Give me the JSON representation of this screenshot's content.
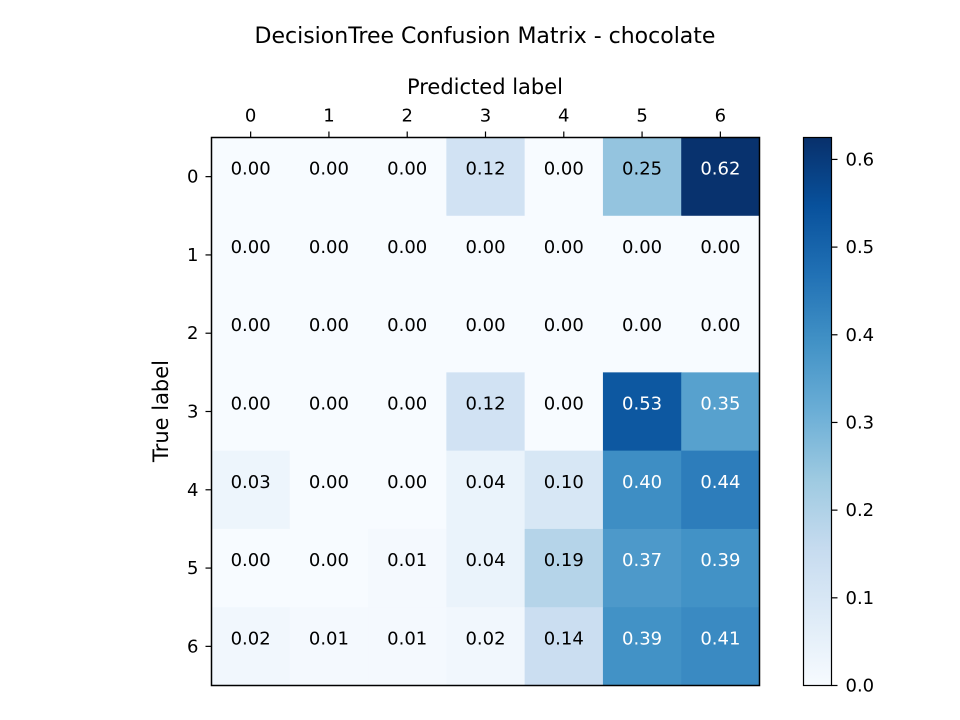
{
  "chart_data": {
    "type": "heatmap",
    "title": "DecisionTree Confusion Matrix - chocolate",
    "xlabel": "Predicted label",
    "ylabel": "True label",
    "x_categories": [
      "0",
      "1",
      "2",
      "3",
      "4",
      "5",
      "6"
    ],
    "y_categories": [
      "0",
      "1",
      "2",
      "3",
      "4",
      "5",
      "6"
    ],
    "values": [
      [
        0.0,
        0.0,
        0.0,
        0.12,
        0.0,
        0.25,
        0.62
      ],
      [
        0.0,
        0.0,
        0.0,
        0.0,
        0.0,
        0.0,
        0.0
      ],
      [
        0.0,
        0.0,
        0.0,
        0.0,
        0.0,
        0.0,
        0.0
      ],
      [
        0.0,
        0.0,
        0.0,
        0.12,
        0.0,
        0.53,
        0.35
      ],
      [
        0.03,
        0.0,
        0.0,
        0.04,
        0.1,
        0.4,
        0.44
      ],
      [
        0.0,
        0.0,
        0.01,
        0.04,
        0.19,
        0.37,
        0.39
      ],
      [
        0.02,
        0.01,
        0.01,
        0.02,
        0.14,
        0.39,
        0.41
      ]
    ],
    "value_format": "0.00",
    "colormap": "Blues",
    "colorbar": {
      "range": [
        0.0,
        0.625
      ],
      "ticks": [
        "0.0",
        "0.1",
        "0.2",
        "0.3",
        "0.4",
        "0.5",
        "0.6"
      ],
      "tick_values": [
        0.0,
        0.1,
        0.2,
        0.3,
        0.4,
        0.5,
        0.6
      ]
    },
    "x_ticks_position": "top",
    "grid": false
  }
}
